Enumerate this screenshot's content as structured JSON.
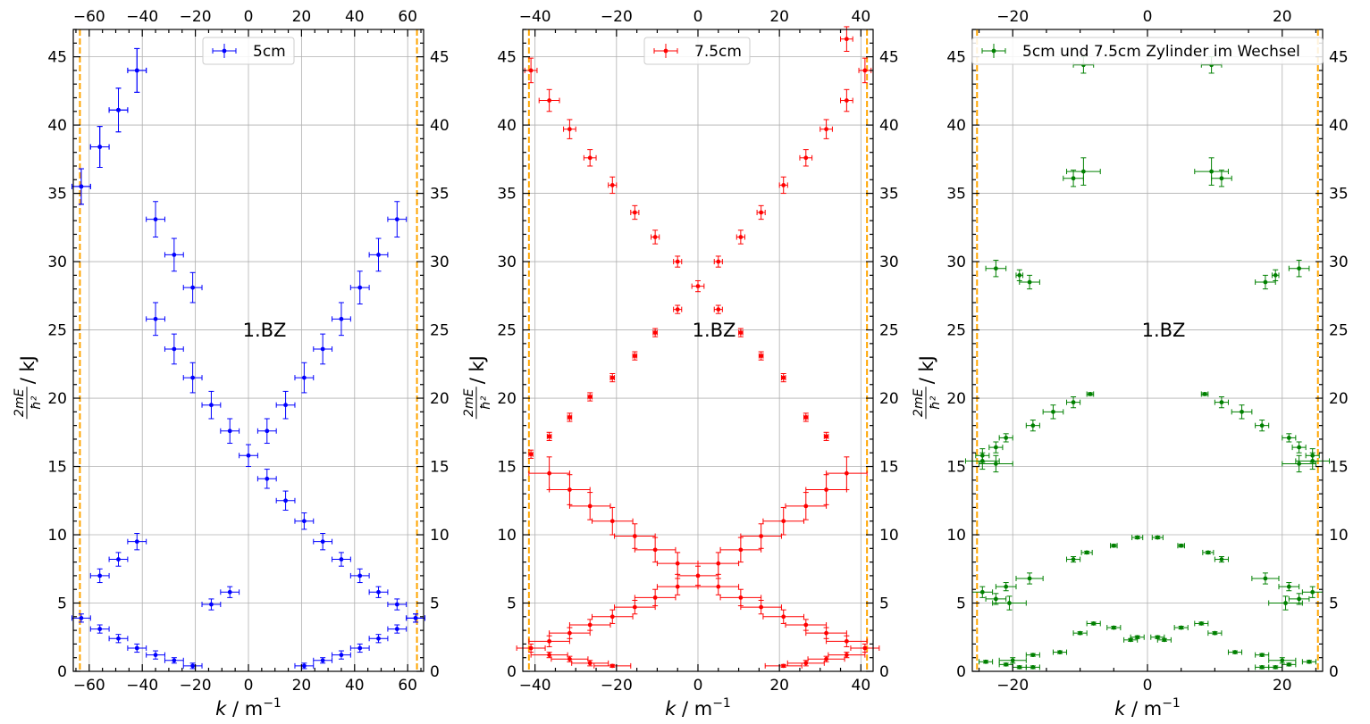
{
  "chart_data": [
    {
      "type": "scatter",
      "xlabel": "k / m⁻¹",
      "ylabel": "2mE/ħ² / kJ",
      "ylabel_num": "2mE",
      "ylabel_den": "ħ²",
      "ylabel_unit": " / kJ",
      "xlabel_var": "k",
      "xlabel_unit": " / m",
      "xlabel_exp": "−1",
      "xlim": [
        -66,
        66
      ],
      "ylim": [
        0,
        47
      ],
      "xticks": [
        -60,
        -40,
        -20,
        0,
        20,
        40,
        60
      ],
      "xtick_labels": [
        "−60",
        "−40",
        "−20",
        "0",
        "20",
        "40",
        "60"
      ],
      "yticks": [
        0,
        5,
        10,
        15,
        20,
        25,
        30,
        35,
        40,
        45
      ],
      "ytick_labels": [
        "0",
        "5",
        "10",
        "15",
        "20",
        "25",
        "30",
        "35",
        "40",
        "45"
      ],
      "grid": true,
      "legend_position": "top-center",
      "annotation": "1.BZ",
      "bz_boundary": 63.5,
      "colors": {
        "series": "#0000ff",
        "boundary": "#ffa500"
      },
      "series": [
        {
          "name": "5cm",
          "color": "#0000ff",
          "x": [
            -63,
            -56,
            -49,
            -42,
            -35,
            -28,
            -21,
            -63,
            -56,
            -49,
            -42,
            -35,
            -28,
            -21,
            -14,
            -7,
            0,
            7,
            14,
            21,
            28,
            35,
            42,
            49,
            56,
            63,
            7,
            14,
            21,
            28,
            35,
            42,
            49,
            56,
            -63,
            -56,
            -49,
            -42,
            -35,
            -28,
            -21,
            -14,
            -7,
            21,
            28,
            35,
            42,
            49,
            56,
            63,
            -56,
            -49,
            -42
          ],
          "y": [
            35.5,
            38.4,
            41.1,
            44.0,
            33.1,
            30.5,
            28.1,
            3.9,
            3.1,
            2.4,
            1.7,
            1.2,
            0.8,
            0.4,
            4.9,
            5.8,
            15.8,
            14.1,
            12.5,
            11.0,
            9.5,
            8.2,
            7.0,
            5.8,
            4.9,
            3.9,
            17.6,
            19.5,
            21.5,
            23.6,
            25.8,
            28.1,
            30.5,
            33.1,
            35.5,
            38.4,
            41.1,
            44.0,
            25.8,
            23.6,
            21.5,
            19.5,
            17.6,
            0.4,
            0.8,
            1.2,
            1.7,
            2.4,
            3.1,
            3.9,
            7.0,
            8.2,
            9.5
          ],
          "xerr": 3.5,
          "yerr": [
            1.3,
            1.5,
            1.6,
            1.6,
            1.3,
            1.2,
            1.1,
            0.3,
            0.3,
            0.3,
            0.3,
            0.3,
            0.2,
            0.2,
            0.4,
            0.4,
            0.8,
            0.7,
            0.7,
            0.6,
            0.6,
            0.5,
            0.5,
            0.4,
            0.4,
            0.3,
            0.9,
            1.0,
            1.1,
            1.1,
            1.2,
            1.2,
            1.2,
            1.3,
            1.3,
            1.5,
            1.6,
            1.6,
            1.2,
            1.1,
            1.1,
            1.0,
            0.9,
            0.2,
            0.2,
            0.3,
            0.3,
            0.3,
            0.3,
            0.3,
            0.5,
            0.5,
            0.6
          ]
        }
      ]
    },
    {
      "type": "scatter",
      "xlabel": "k / m⁻¹",
      "ylabel": "2mE/ħ² / kJ",
      "ylabel_num": "2mE",
      "ylabel_den": "ħ²",
      "ylabel_unit": " / kJ",
      "xlabel_var": "k",
      "xlabel_unit": " / m",
      "xlabel_exp": "−1",
      "xlim": [
        -43,
        43
      ],
      "ylim": [
        0,
        47
      ],
      "xticks": [
        -40,
        -20,
        0,
        20,
        40
      ],
      "xtick_labels": [
        "−40",
        "−20",
        "0",
        "20",
        "40"
      ],
      "yticks": [
        0,
        5,
        10,
        15,
        20,
        25,
        30,
        35,
        40,
        45
      ],
      "ytick_labels": [
        "0",
        "5",
        "10",
        "15",
        "20",
        "25",
        "30",
        "35",
        "40",
        "45"
      ],
      "grid": true,
      "legend_position": "top-center",
      "annotation": "1.BZ",
      "bz_boundary": 41.5,
      "colors": {
        "series": "#ff0000",
        "boundary": "#ffa500"
      },
      "series": [
        {
          "name": "7.5cm",
          "color": "#ff0000",
          "x": [
            -41,
            -36.5,
            -31.5,
            -26.5,
            -21,
            -15.5,
            -10.5,
            -5,
            0,
            5,
            10.5,
            15.5,
            21,
            26.5,
            31.5,
            36.5,
            41,
            36.5,
            31.5,
            26.5,
            21,
            15.5,
            10.5,
            5,
            -5,
            -10.5,
            -15.5,
            -21,
            -26.5,
            -31.5,
            -36.5,
            -41,
            -41,
            -36.5,
            -31.5,
            -26.5,
            -21,
            -15.5,
            -10.5,
            -5,
            0,
            5,
            10.5,
            15.5,
            21,
            26.5,
            31.5,
            36.5,
            41,
            -36.5,
            -31.5,
            -26.5,
            -21,
            -15.5,
            -10.5,
            -5,
            5,
            10.5,
            15.5,
            21,
            26.5,
            31.5,
            36.5,
            -36.5,
            -31.5,
            -26.5,
            -21,
            21,
            26.5,
            31.5,
            36.5
          ],
          "y": [
            44.0,
            41.8,
            39.7,
            37.6,
            35.6,
            33.6,
            31.8,
            30.0,
            28.2,
            30.0,
            31.8,
            33.6,
            35.6,
            37.6,
            39.7,
            41.8,
            44.0,
            46.3,
            17.2,
            18.6,
            21.5,
            23.1,
            24.8,
            26.5,
            26.5,
            24.8,
            23.1,
            21.5,
            20.1,
            18.6,
            17.2,
            15.9,
            1.7,
            2.2,
            2.8,
            3.4,
            4.0,
            4.7,
            5.4,
            6.2,
            7.0,
            6.2,
            5.4,
            4.7,
            4.0,
            3.4,
            2.8,
            2.2,
            1.7,
            14.5,
            13.3,
            12.1,
            11.0,
            9.9,
            8.9,
            7.9,
            7.9,
            8.9,
            9.9,
            11.0,
            12.1,
            13.3,
            14.5,
            1.2,
            0.9,
            0.6,
            0.4,
            0.4,
            0.6,
            0.9,
            1.2
          ],
          "xerr": 2.5,
          "yerr": [
            0.9,
            0.8,
            0.7,
            0.6,
            0.6,
            0.5,
            0.5,
            0.4,
            0.4,
            0.4,
            0.5,
            0.5,
            0.6,
            0.6,
            0.7,
            0.8,
            0.9,
            0.9,
            0.3,
            0.3,
            0.3,
            0.3,
            0.3,
            0.3,
            0.3,
            0.3,
            0.3,
            0.3,
            0.3,
            0.3,
            0.3,
            0.3,
            0.3,
            0.4,
            0.4,
            0.4,
            0.5,
            0.5,
            0.6,
            0.6,
            0.7,
            0.6,
            0.6,
            0.5,
            0.5,
            0.4,
            0.4,
            0.4,
            0.3,
            1.2,
            1.1,
            1.0,
            1.0,
            0.9,
            0.9,
            0.8,
            0.8,
            0.9,
            0.9,
            1.0,
            1.0,
            1.1,
            1.2,
            0.2,
            0.2,
            0.2,
            0.1,
            0.1,
            0.2,
            0.2,
            0.2
          ],
          "xerr_list": [
            1.5,
            2.5,
            1.5,
            1.5,
            1.0,
            1.0,
            1.0,
            1.0,
            1.5,
            1.0,
            1.0,
            1.0,
            1.0,
            1.5,
            1.5,
            1.5,
            1.5,
            1.5,
            0.5,
            0.5,
            0.5,
            0.5,
            0.5,
            1.0,
            1.0,
            0.5,
            0.5,
            0.5,
            0.5,
            0.5,
            0.5,
            0.5,
            3.5,
            5.0,
            5.0,
            5.0,
            5.0,
            5.0,
            5.0,
            5.0,
            5.0,
            5.0,
            5.0,
            5.0,
            5.0,
            5.0,
            5.0,
            5.0,
            3.5,
            5.0,
            5.0,
            5.0,
            5.0,
            5.0,
            5.0,
            5.0,
            5.0,
            5.0,
            5.0,
            5.0,
            5.0,
            5.0,
            5.0,
            4.5,
            4.5,
            4.5,
            4.5,
            4.5,
            4.5,
            4.5,
            4.5
          ]
        }
      ]
    },
    {
      "type": "scatter",
      "xlabel": "k / m⁻¹",
      "ylabel": "2mE/ħ² / kJ",
      "ylabel_num": "2mE",
      "ylabel_den": "ħ²",
      "ylabel_unit": " / kJ",
      "xlabel_var": "k",
      "xlabel_unit": " / m",
      "xlabel_exp": "−1",
      "xlim": [
        -26,
        26
      ],
      "ylim": [
        0,
        47
      ],
      "xticks": [
        -20,
        0,
        20
      ],
      "xtick_labels": [
        "−20",
        "0",
        "20"
      ],
      "yticks": [
        0,
        5,
        10,
        15,
        20,
        25,
        30,
        35,
        40,
        45
      ],
      "ytick_labels": [
        "0",
        "5",
        "10",
        "15",
        "20",
        "25",
        "30",
        "35",
        "40",
        "45"
      ],
      "grid": true,
      "legend_position": "top-center",
      "annotation": "1.BZ",
      "bz_boundary": 25.3,
      "colors": {
        "series": "#008000",
        "boundary": "#ffa500"
      },
      "series": [
        {
          "name": "5cm und 7.5cm Zylinder im Wechsel",
          "color": "#008000",
          "x": [
            -9.5,
            9.5,
            -11,
            -9.5,
            9.5,
            11,
            -19,
            -17.5,
            -22.5,
            19,
            17.5,
            22.5,
            -8.5,
            -11,
            -14,
            -17,
            -21,
            -22.5,
            -24.5,
            8.5,
            11,
            14,
            17,
            21,
            22.5,
            24.5,
            -24.5,
            -22.5,
            24.5,
            22.5,
            -1.5,
            1.5,
            -5,
            -9,
            -11,
            5,
            9,
            11,
            -24.5,
            -22.5,
            -21,
            -20.5,
            -17.5,
            24.5,
            22.5,
            21,
            20.5,
            17.5,
            -1.5,
            1.5,
            -5,
            -8,
            -10,
            -13,
            -17,
            -2.5,
            2.5,
            5,
            8,
            10,
            13,
            17,
            -24,
            -21,
            -20,
            -19,
            -17,
            24,
            21,
            20,
            19,
            17
          ],
          "y": [
            44.4,
            44.4,
            36.1,
            36.6,
            36.6,
            36.1,
            29.0,
            28.5,
            29.5,
            29.0,
            28.5,
            29.5,
            20.3,
            19.7,
            19.0,
            18.0,
            17.1,
            16.4,
            15.8,
            20.3,
            19.7,
            19.0,
            18.0,
            17.1,
            16.4,
            15.8,
            15.4,
            15.2,
            15.4,
            15.2,
            9.8,
            9.8,
            9.2,
            8.7,
            8.2,
            9.2,
            8.7,
            8.2,
            5.8,
            5.3,
            6.2,
            5.0,
            6.8,
            5.8,
            5.3,
            6.2,
            5.0,
            6.8,
            2.5,
            2.5,
            3.2,
            3.5,
            2.8,
            1.4,
            1.2,
            2.3,
            2.3,
            3.2,
            3.5,
            2.8,
            1.4,
            1.2,
            0.7,
            0.5,
            0.8,
            0.3,
            0.3,
            0.7,
            0.5,
            0.8,
            0.3,
            0.3
          ],
          "xerr": [
            1.5,
            1.5,
            1.5,
            2.5,
            2.5,
            1.5,
            0.5,
            1.5,
            1.5,
            0.5,
            1.5,
            1.5,
            0.5,
            1.0,
            1.5,
            1.0,
            1.0,
            1.0,
            1.0,
            0.5,
            1.0,
            1.5,
            1.0,
            1.0,
            1.0,
            1.0,
            2.5,
            2.5,
            2.5,
            2.5,
            0.8,
            0.8,
            0.5,
            0.8,
            1.0,
            0.5,
            0.8,
            1.0,
            1.5,
            1.5,
            1.5,
            2.5,
            2.0,
            1.5,
            1.5,
            1.5,
            2.5,
            2.0,
            1.0,
            1.0,
            1.0,
            1.0,
            1.0,
            1.0,
            1.0,
            1.0,
            1.0,
            1.0,
            1.0,
            1.0,
            1.0,
            1.0,
            1.0,
            1.0,
            2.0,
            1.0,
            1.0,
            1.0,
            1.0,
            2.0,
            1.0,
            1.0
          ],
          "yerr": [
            0.6,
            0.6,
            0.6,
            1.0,
            1.0,
            0.6,
            0.4,
            0.5,
            0.6,
            0.4,
            0.5,
            0.6,
            0.1,
            0.4,
            0.5,
            0.4,
            0.3,
            0.4,
            0.5,
            0.1,
            0.4,
            0.5,
            0.4,
            0.3,
            0.4,
            0.5,
            0.6,
            0.6,
            0.6,
            0.6,
            0.1,
            0.1,
            0.1,
            0.1,
            0.2,
            0.1,
            0.1,
            0.2,
            0.4,
            0.4,
            0.3,
            0.5,
            0.4,
            0.4,
            0.4,
            0.3,
            0.5,
            0.4,
            0.1,
            0.1,
            0.1,
            0.1,
            0.1,
            0.1,
            0.1,
            0.1,
            0.1,
            0.1,
            0.1,
            0.1,
            0.1,
            0.1,
            0.1,
            0.1,
            0.2,
            0.1,
            0.1,
            0.1,
            0.1,
            0.2,
            0.1,
            0.1
          ]
        }
      ]
    }
  ]
}
